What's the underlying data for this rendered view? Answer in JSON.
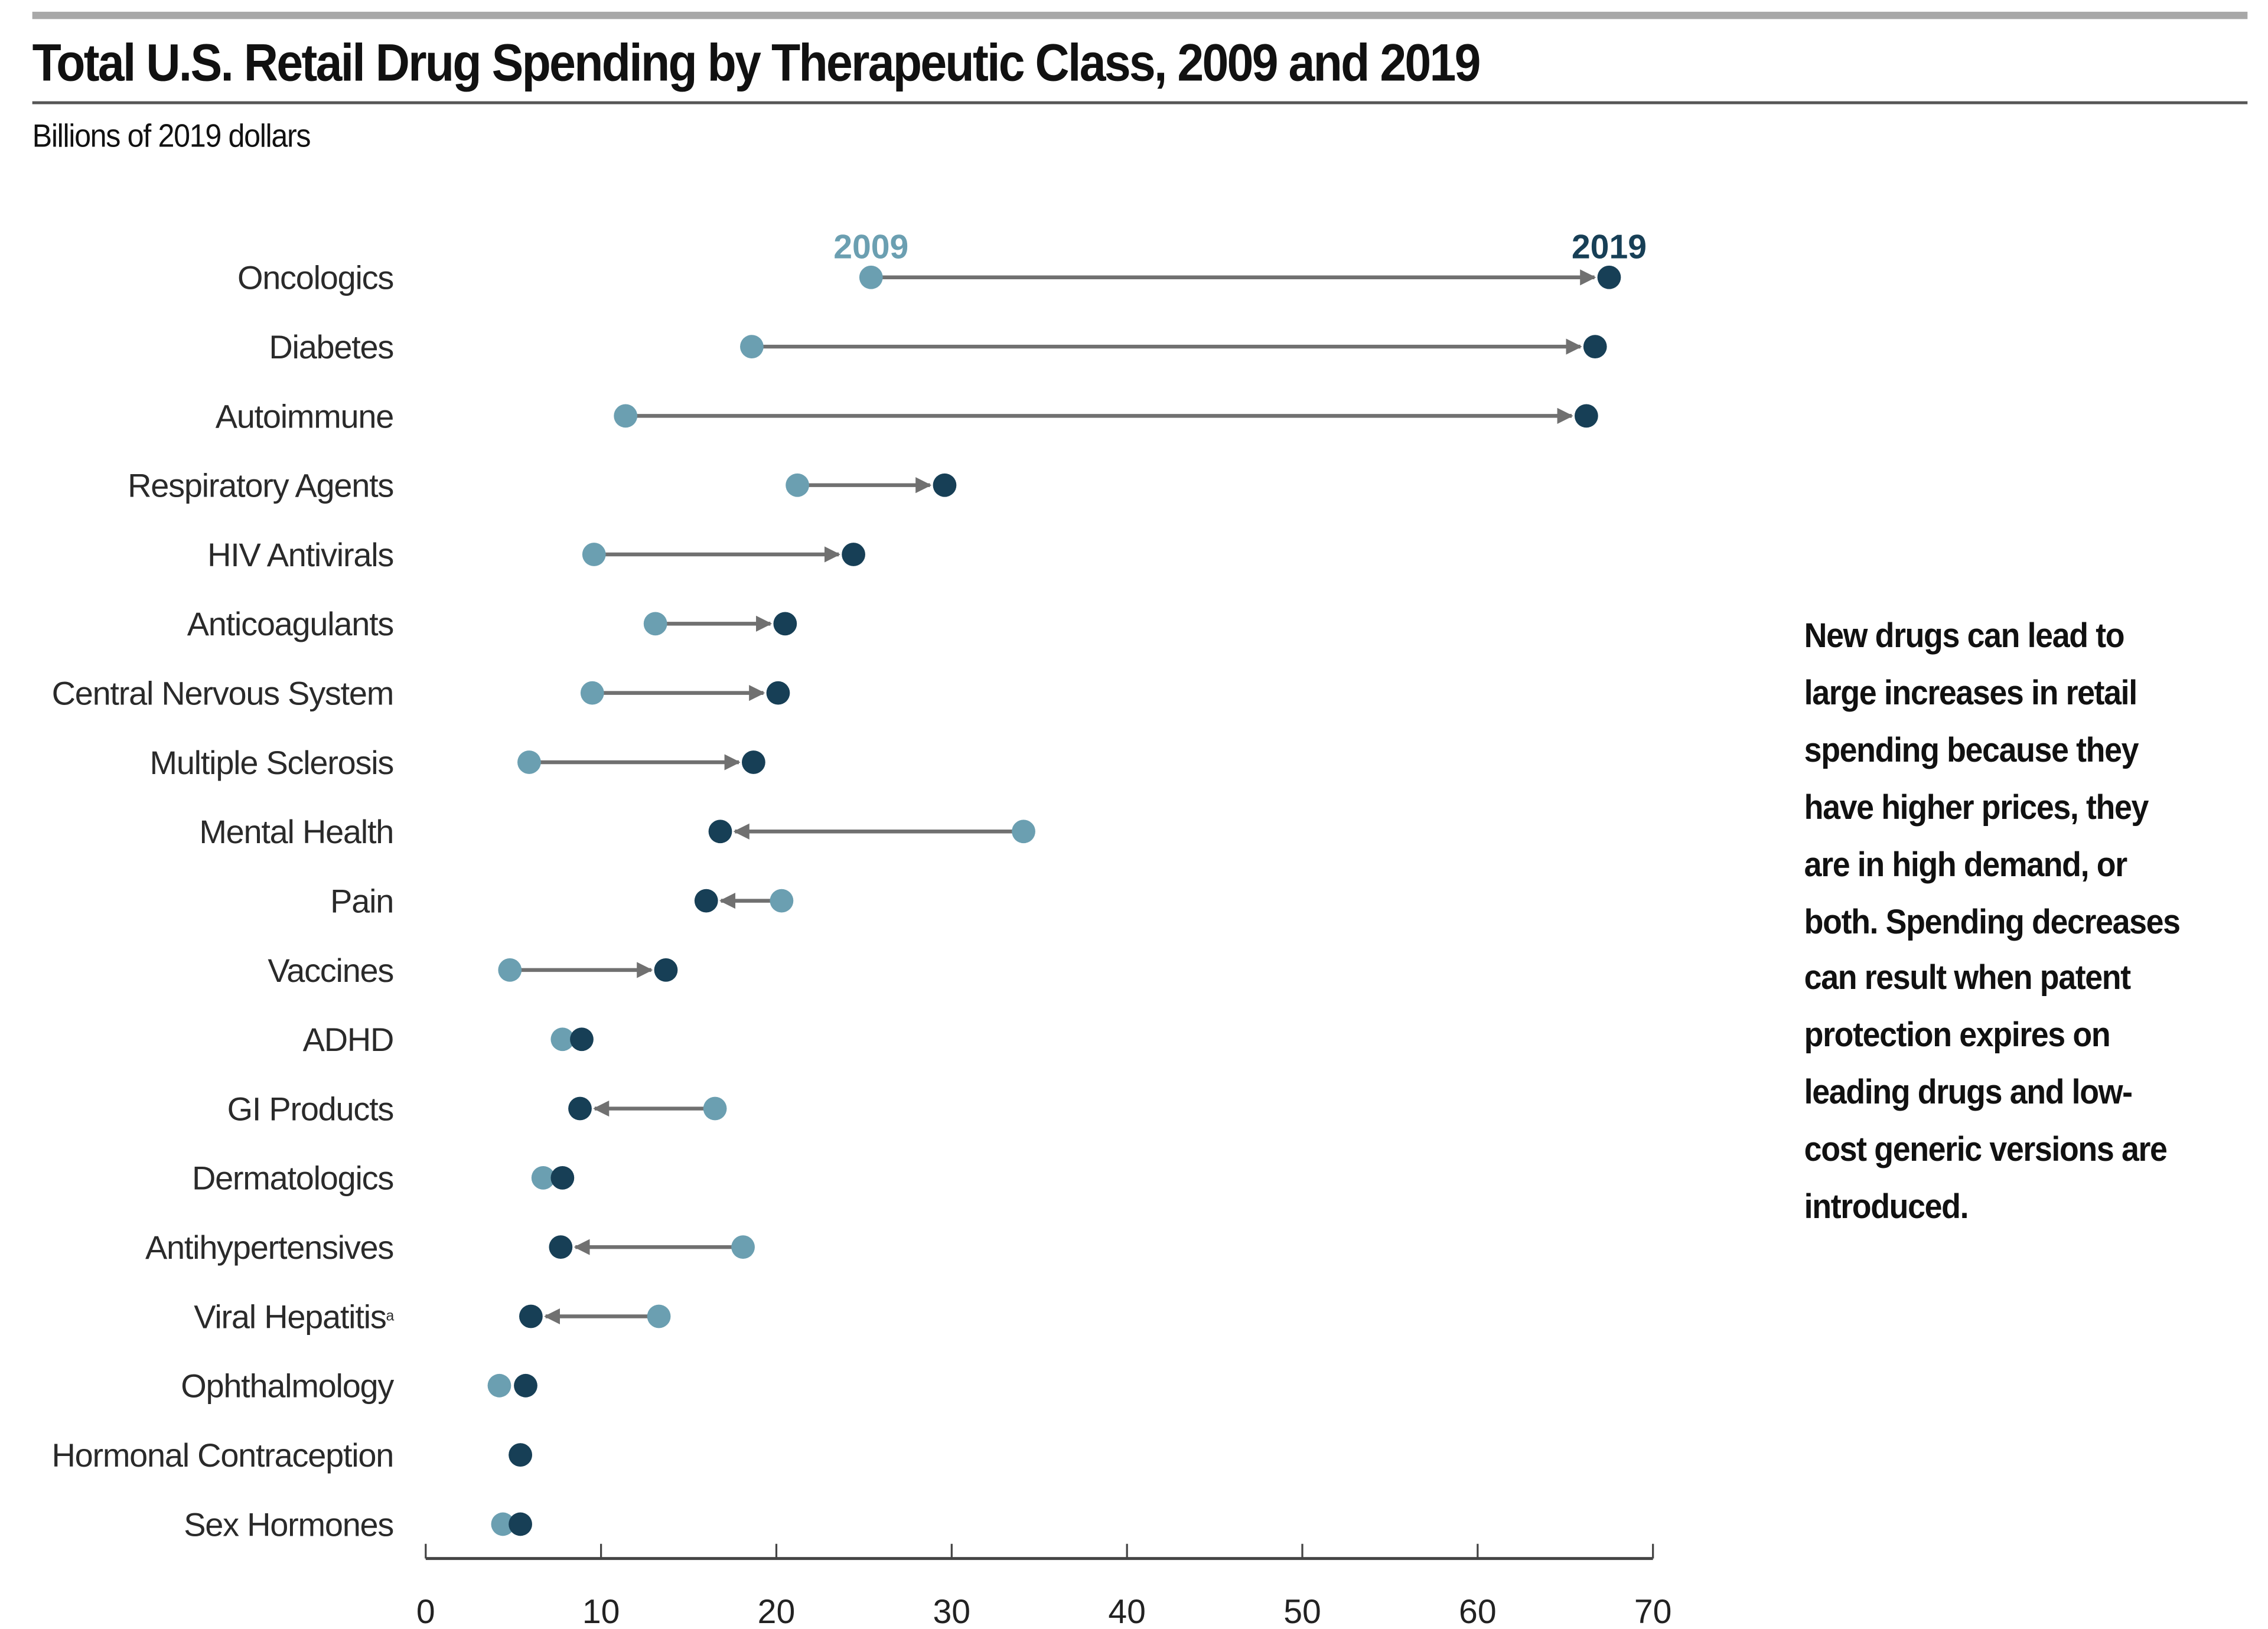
{
  "title": "Total U.S. Retail Drug Spending by Therapeutic Class, 2009 and 2019",
  "subtitle": "Billions of 2019 dollars",
  "note_lines": [
    "New drugs can lead to",
    "large increases in retail",
    "spending because they",
    "have higher prices, they",
    "are in high demand, or",
    "both. Spending decreases",
    "can result when patent",
    "protection expires on",
    "leading drugs and low-",
    "cost generic versions are",
    "introduced."
  ],
  "colors": {
    "y2009": "#6b9fb1",
    "y2019": "#173f56",
    "arrow": "#707070",
    "axis": "#444444"
  },
  "chart_data": {
    "type": "dumbbell",
    "title": "Total U.S. Retail Drug Spending by Therapeutic Class, 2009 and 2019",
    "subtitle": "Billions of 2019 dollars",
    "xlim": [
      0,
      70
    ],
    "xticks": [
      "0",
      "10",
      "20",
      "30",
      "40",
      "50",
      "60",
      "70"
    ],
    "grid": false,
    "legend": {
      "labels": [
        "2009",
        "2019"
      ],
      "placement": "above first row"
    },
    "categories": [
      "Oncologics",
      "Diabetes",
      "Autoimmune",
      "Respiratory Agents",
      "HIV Antivirals",
      "Anticoagulants",
      "Central Nervous System",
      "Multiple Sclerosis",
      "Mental Health",
      "Pain",
      "Vaccines",
      "ADHD",
      "GI Products",
      "Dermatologics",
      "Antihypertensives",
      "Viral Hepatitis",
      "Ophthalmology",
      "Hormonal Contraception",
      "Sex Hormones"
    ],
    "footnote_marks": {
      "Viral Hepatitis": "a"
    },
    "series": [
      {
        "name": "2009",
        "values": [
          25.4,
          18.6,
          11.4,
          21.2,
          9.6,
          13.1,
          9.5,
          5.9,
          34.1,
          20.3,
          4.8,
          7.8,
          16.5,
          6.7,
          18.1,
          13.3,
          4.2,
          5.4,
          4.4
        ]
      },
      {
        "name": "2019",
        "values": [
          67.5,
          66.7,
          66.2,
          29.6,
          24.4,
          20.5,
          20.1,
          18.7,
          16.8,
          16.0,
          13.7,
          8.9,
          8.8,
          7.8,
          7.7,
          6.0,
          5.7,
          5.4,
          5.4
        ]
      }
    ]
  }
}
